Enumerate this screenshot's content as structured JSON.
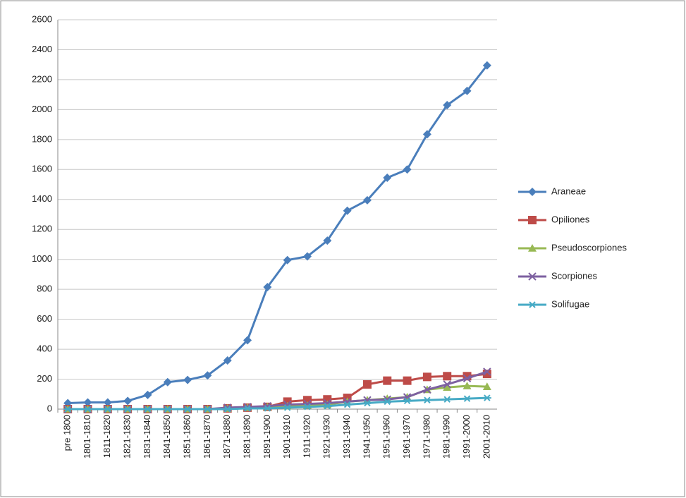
{
  "chart_data": {
    "type": "line",
    "categories": [
      "pre 1800",
      "1801-1810",
      "1811-1820",
      "1821-1830",
      "1831-1840",
      "1841-1850",
      "1851-1860",
      "1861-1870",
      "1871-1880",
      "1881-1890",
      "1891-1900",
      "1901-1910",
      "1911-1920",
      "1921-1930",
      "1931-1940",
      "1941-1950",
      "1951-1960",
      "1961-1970",
      "1971-1980",
      "1981-1990",
      "1991-2000",
      "2001-2010"
    ],
    "series": [
      {
        "name": "Araneae",
        "color": "#4a7ebb",
        "marker": "diamond",
        "values": [
          40,
          45,
          45,
          55,
          95,
          180,
          195,
          225,
          325,
          460,
          815,
          995,
          1020,
          1125,
          1325,
          1395,
          1545,
          1600,
          1835,
          2030,
          2125,
          2295
        ]
      },
      {
        "name": "Opiliones",
        "color": "#be4b48",
        "marker": "square",
        "values": [
          0,
          0,
          0,
          0,
          0,
          0,
          0,
          0,
          5,
          10,
          15,
          50,
          60,
          65,
          75,
          165,
          190,
          190,
          215,
          220,
          220,
          235
        ]
      },
      {
        "name": "Pseudoscorpiones",
        "color": "#98b954",
        "marker": "triangle",
        "values": [
          0,
          0,
          0,
          0,
          0,
          0,
          0,
          0,
          5,
          10,
          15,
          20,
          25,
          30,
          50,
          60,
          70,
          80,
          130,
          145,
          155,
          150
        ]
      },
      {
        "name": "Scorpiones",
        "color": "#7d60a0",
        "marker": "x",
        "values": [
          0,
          0,
          0,
          0,
          0,
          0,
          0,
          0,
          10,
          15,
          20,
          30,
          35,
          40,
          50,
          60,
          65,
          80,
          130,
          165,
          205,
          250
        ]
      },
      {
        "name": "Solifugae",
        "color": "#46aac5",
        "marker": "cross",
        "values": [
          0,
          0,
          0,
          0,
          0,
          0,
          0,
          0,
          0,
          5,
          5,
          10,
          15,
          20,
          30,
          40,
          50,
          55,
          60,
          65,
          70,
          75
        ]
      }
    ],
    "ylim": [
      0,
      2600
    ],
    "yticks": [
      0,
      200,
      400,
      600,
      800,
      1000,
      1200,
      1400,
      1600,
      1800,
      2000,
      2200,
      2400,
      2600
    ],
    "grid": true,
    "legend": "right"
  }
}
